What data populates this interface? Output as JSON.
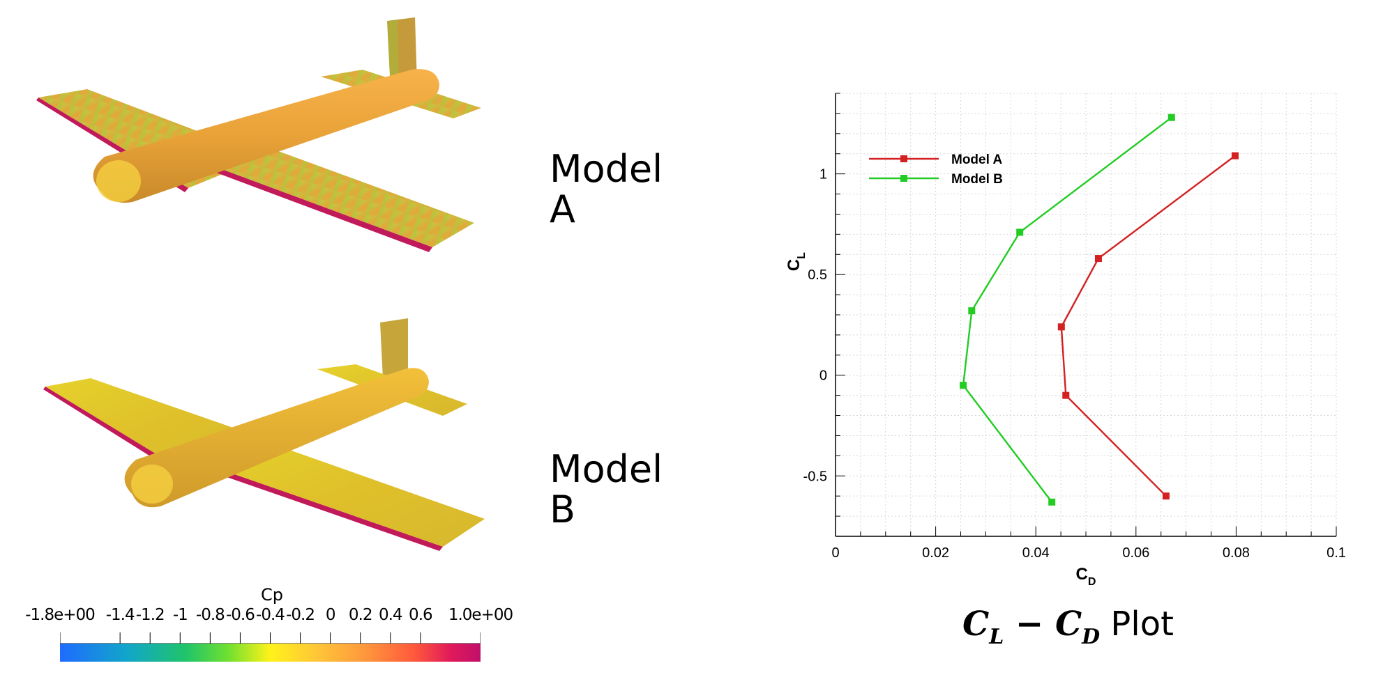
{
  "models": {
    "a_label": "Model\nA",
    "b_label": "Model\nB"
  },
  "colorbar": {
    "title": "Cp",
    "ticks": [
      {
        "label": "-1.8e+00",
        "value": -1.8
      },
      {
        "label": "-1.4",
        "value": -1.4
      },
      {
        "label": "-1.2",
        "value": -1.2
      },
      {
        "label": "-1",
        "value": -1.0
      },
      {
        "label": "-0.8",
        "value": -0.8
      },
      {
        "label": "-0.6",
        "value": -0.6
      },
      {
        "label": "-0.4",
        "value": -0.4
      },
      {
        "label": "-0.2",
        "value": -0.2
      },
      {
        "label": "0",
        "value": 0.0
      },
      {
        "label": "0.2",
        "value": 0.2
      },
      {
        "label": "0.4",
        "value": 0.4
      },
      {
        "label": "0.6",
        "value": 0.6
      },
      {
        "label": "1.0e+00",
        "value": 1.0
      }
    ],
    "min": -1.8,
    "max": 1.0,
    "colors": [
      "#1f6bff",
      "#20c46a",
      "#fff21a",
      "#ff9a3c",
      "#c0106a"
    ]
  },
  "chart_data": {
    "type": "line",
    "xlabel": "C_D",
    "ylabel": "C_L",
    "xlim": [
      0,
      0.1
    ],
    "ylim": [
      -0.8,
      1.4
    ],
    "xticks": [
      0,
      0.02,
      0.04,
      0.06,
      0.08,
      0.1
    ],
    "xtick_labels": [
      "0",
      "0.02",
      "0.04",
      "0.06",
      "0.08",
      "0.1"
    ],
    "yticks": [
      -0.5,
      0,
      0.5,
      1
    ],
    "ytick_labels": [
      "-0.5",
      "0",
      "0.5",
      "1"
    ],
    "grid": true,
    "legend_position": "top-left",
    "series": [
      {
        "name": "Model A",
        "color": "#d42020",
        "x": [
          0.066,
          0.046,
          0.0451,
          0.0525,
          0.0798
        ],
        "y": [
          -0.6,
          -0.1,
          0.24,
          0.58,
          1.09
        ]
      },
      {
        "name": "Model B",
        "color": "#22cc22",
        "x": [
          0.0432,
          0.0255,
          0.0272,
          0.0368,
          0.0671
        ],
        "y": [
          -0.63,
          -0.05,
          0.32,
          0.71,
          1.28
        ]
      }
    ],
    "caption": {
      "main_left": "C",
      "sub_left": "L",
      "minus": " − ",
      "main_right": "C",
      "sub_right": "D",
      "suffix": " Plot"
    }
  }
}
